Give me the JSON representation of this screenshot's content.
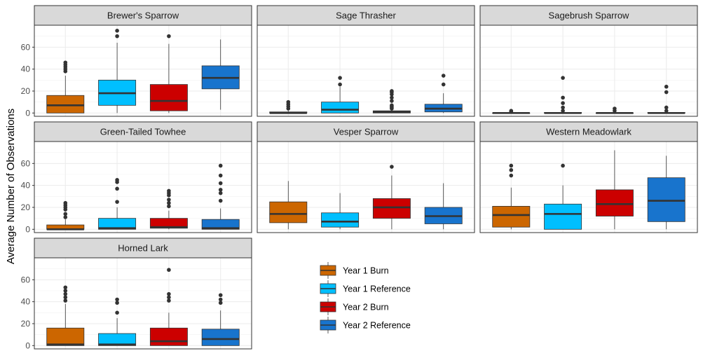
{
  "chart_data": {
    "type": "box",
    "ylabel": "Average Number of Observations",
    "yticks": [
      0,
      20,
      40,
      60
    ],
    "ylim": [
      -3,
      80
    ],
    "grid": true,
    "legend_position": "bottom-center",
    "groups": [
      {
        "name": "Year 1 Burn",
        "color": "#CC6600"
      },
      {
        "name": "Year 1 Reference",
        "color": "#00BFFF"
      },
      {
        "name": "Year 2 Burn",
        "color": "#CC0000"
      },
      {
        "name": "Year 2 Reference",
        "color": "#1874CD"
      }
    ],
    "panels": [
      {
        "title": "Brewer's Sparrow",
        "boxes": [
          {
            "group": "Year 1 Burn",
            "lower_whisker": 0,
            "q1": 0,
            "median": 7,
            "q3": 16,
            "upper_whisker": 34,
            "outliers": [
              38,
              40,
              42,
              44,
              46
            ]
          },
          {
            "group": "Year 1 Reference",
            "lower_whisker": 0,
            "q1": 7,
            "median": 18,
            "q3": 30,
            "upper_whisker": 64,
            "outliers": [
              70,
              75
            ]
          },
          {
            "group": "Year 2 Burn",
            "lower_whisker": 0,
            "q1": 2,
            "median": 11,
            "q3": 26,
            "upper_whisker": 63,
            "outliers": [
              70
            ]
          },
          {
            "group": "Year 2 Reference",
            "lower_whisker": 3,
            "q1": 22,
            "median": 32,
            "q3": 43,
            "upper_whisker": 67,
            "outliers": []
          }
        ]
      },
      {
        "title": "Sage Thrasher",
        "boxes": [
          {
            "group": "Year 1 Burn",
            "lower_whisker": 0,
            "q1": 0,
            "median": 0,
            "q3": 1,
            "upper_whisker": 2,
            "outliers": [
              4,
              6,
              8,
              10
            ]
          },
          {
            "group": "Year 1 Reference",
            "lower_whisker": 0,
            "q1": 0,
            "median": 3,
            "q3": 10,
            "upper_whisker": 24,
            "outliers": [
              26,
              32
            ]
          },
          {
            "group": "Year 2 Burn",
            "lower_whisker": 0,
            "q1": 0,
            "median": 1,
            "q3": 2,
            "upper_whisker": 3,
            "outliers": [
              4,
              5,
              6,
              7,
              11,
              14,
              17,
              19,
              20
            ]
          },
          {
            "group": "Year 2 Reference",
            "lower_whisker": 0,
            "q1": 1,
            "median": 4,
            "q3": 8,
            "upper_whisker": 18,
            "outliers": [
              26,
              34
            ]
          }
        ]
      },
      {
        "title": "Sagebrush Sparrow",
        "boxes": [
          {
            "group": "Year 1 Burn",
            "lower_whisker": 0,
            "q1": 0,
            "median": 0,
            "q3": 0,
            "upper_whisker": 0,
            "outliers": [
              1,
              2
            ]
          },
          {
            "group": "Year 1 Reference",
            "lower_whisker": 0,
            "q1": 0,
            "median": 0,
            "q3": 0.5,
            "upper_whisker": 0.5,
            "outliers": [
              2,
              5,
              9,
              14,
              32
            ]
          },
          {
            "group": "Year 2 Burn",
            "lower_whisker": 0,
            "q1": 0,
            "median": 0,
            "q3": 0,
            "upper_whisker": 0,
            "outliers": [
              2,
              4
            ]
          },
          {
            "group": "Year 2 Reference",
            "lower_whisker": 0,
            "q1": 0,
            "median": 0,
            "q3": 0.5,
            "upper_whisker": 0.5,
            "outliers": [
              2,
              5,
              19,
              24
            ]
          }
        ]
      },
      {
        "title": "Green-Tailed Towhee",
        "boxes": [
          {
            "group": "Year 1 Burn",
            "lower_whisker": 0,
            "q1": 0,
            "median": 0,
            "q3": 4,
            "upper_whisker": 9,
            "outliers": [
              11,
              14,
              18,
              20,
              22,
              24
            ]
          },
          {
            "group": "Year 1 Reference",
            "lower_whisker": 0,
            "q1": 0,
            "median": 1,
            "q3": 10,
            "upper_whisker": 20,
            "outliers": [
              25,
              37,
              43,
              45
            ]
          },
          {
            "group": "Year 2 Burn",
            "lower_whisker": 0,
            "q1": 1,
            "median": 2,
            "q3": 10,
            "upper_whisker": 17,
            "outliers": [
              21,
              24,
              27,
              31,
              33,
              35
            ]
          },
          {
            "group": "Year 2 Reference",
            "lower_whisker": 0,
            "q1": 0,
            "median": 1,
            "q3": 9,
            "upper_whisker": 19,
            "outliers": [
              26,
              33,
              36,
              42,
              49,
              58
            ]
          }
        ]
      },
      {
        "title": "Vesper Sparrow",
        "boxes": [
          {
            "group": "Year 1 Burn",
            "lower_whisker": 0,
            "q1": 6,
            "median": 14,
            "q3": 25,
            "upper_whisker": 44,
            "outliers": []
          },
          {
            "group": "Year 1 Reference",
            "lower_whisker": 0,
            "q1": 2,
            "median": 7,
            "q3": 15,
            "upper_whisker": 33,
            "outliers": []
          },
          {
            "group": "Year 2 Burn",
            "lower_whisker": 0,
            "q1": 10,
            "median": 20,
            "q3": 28,
            "upper_whisker": 49,
            "outliers": [
              57
            ]
          },
          {
            "group": "Year 2 Reference",
            "lower_whisker": 0,
            "q1": 5,
            "median": 12,
            "q3": 20,
            "upper_whisker": 42,
            "outliers": []
          }
        ]
      },
      {
        "title": "Western Meadowlark",
        "boxes": [
          {
            "group": "Year 1 Burn",
            "lower_whisker": 0,
            "q1": 2,
            "median": 13,
            "q3": 21,
            "upper_whisker": 38,
            "outliers": [
              49,
              54,
              58
            ]
          },
          {
            "group": "Year 1 Reference",
            "lower_whisker": 0,
            "q1": 0,
            "median": 14,
            "q3": 23,
            "upper_whisker": 40,
            "outliers": [
              58
            ]
          },
          {
            "group": "Year 2 Burn",
            "lower_whisker": 0,
            "q1": 12,
            "median": 23,
            "q3": 36,
            "upper_whisker": 72,
            "outliers": []
          },
          {
            "group": "Year 2 Reference",
            "lower_whisker": 0,
            "q1": 7,
            "median": 26,
            "q3": 47,
            "upper_whisker": 67,
            "outliers": []
          }
        ]
      },
      {
        "title": "Horned Lark",
        "boxes": [
          {
            "group": "Year 1 Burn",
            "lower_whisker": 0,
            "q1": 0,
            "median": 1,
            "q3": 16,
            "upper_whisker": 38,
            "outliers": [
              41,
              44,
              47,
              50,
              53
            ]
          },
          {
            "group": "Year 1 Reference",
            "lower_whisker": 0,
            "q1": 0,
            "median": 1,
            "q3": 11,
            "upper_whisker": 25,
            "outliers": [
              30,
              39,
              42
            ]
          },
          {
            "group": "Year 2 Burn",
            "lower_whisker": 0,
            "q1": 0,
            "median": 4,
            "q3": 16,
            "upper_whisker": 30,
            "outliers": [
              41,
              44,
              47,
              69
            ]
          },
          {
            "group": "Year 2 Reference",
            "lower_whisker": 0,
            "q1": 0,
            "median": 6,
            "q3": 15,
            "upper_whisker": 32,
            "outliers": [
              39,
              42,
              46
            ]
          }
        ]
      }
    ]
  }
}
